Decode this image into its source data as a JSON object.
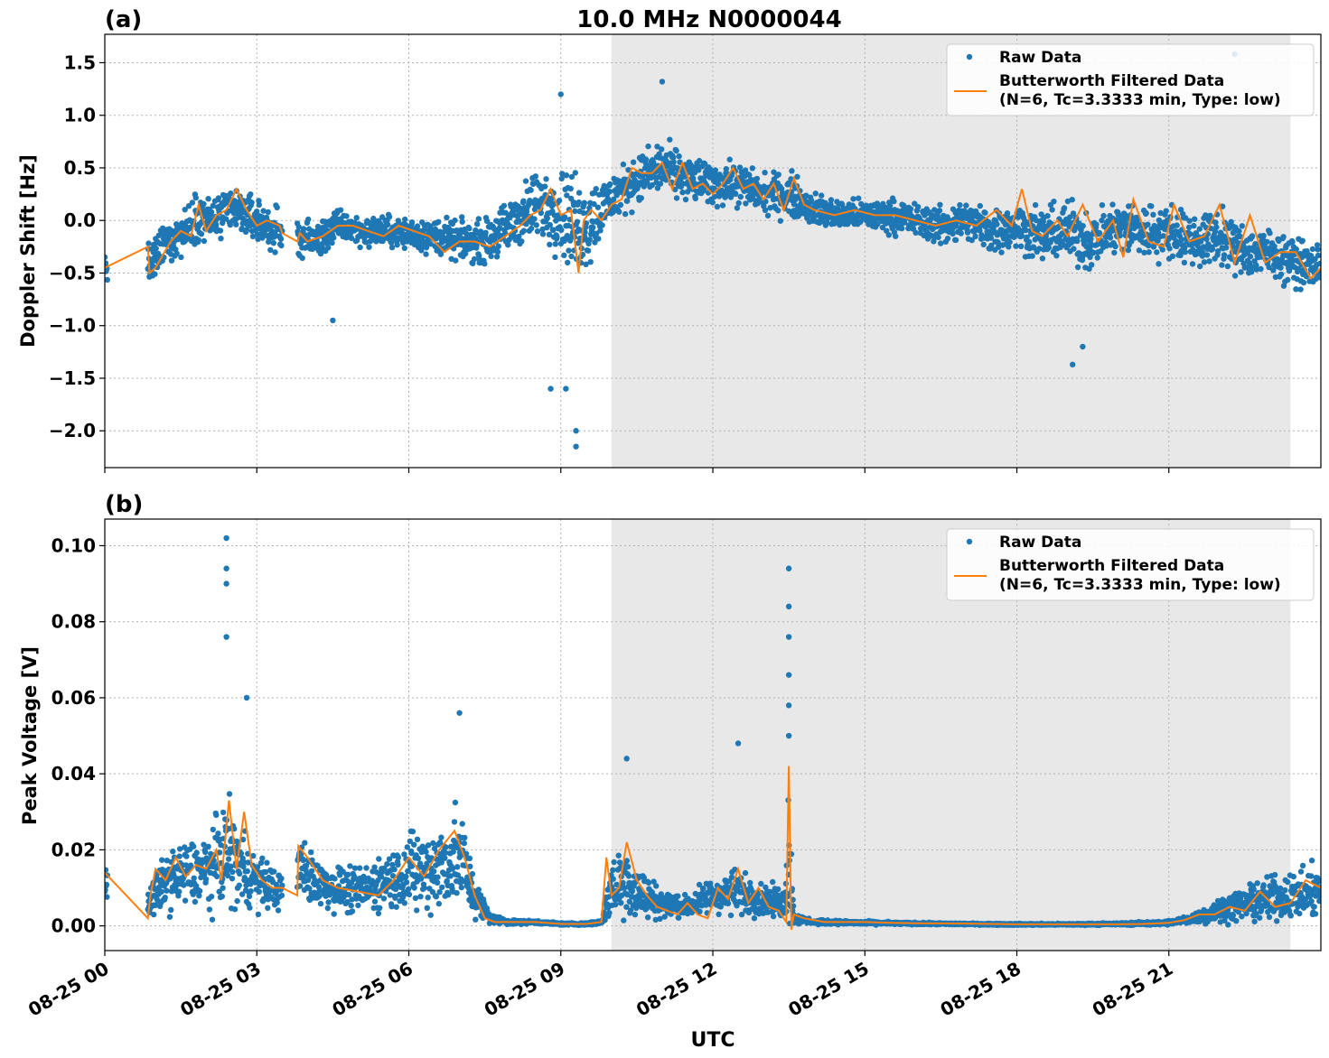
{
  "figure": {
    "title": "10.0 MHz N0000044",
    "xlabel": "UTC",
    "colors": {
      "raw": "#1f77b4",
      "filtered": "#ff7f0e",
      "shade": "#e8e8e8",
      "grid": "#b0b0b0"
    }
  },
  "chart_data": [
    {
      "type": "scatter",
      "panel_label": "(a)",
      "title": "10.0 MHz N0000044",
      "xlabel": "",
      "ylabel": "Doppler Shift [Hz]",
      "xlim_hours": [
        0,
        24
      ],
      "ylim": [
        -2.35,
        1.77
      ],
      "x_ticks": [
        "08-25 00",
        "08-25 03",
        "08-25 06",
        "08-25 09",
        "08-25 12",
        "08-25 15",
        "08-25 18",
        "08-25 21"
      ],
      "y_ticks": [
        1.5,
        1.0,
        0.5,
        0.0,
        -0.5,
        -1.0,
        -1.5,
        -2.0
      ],
      "y_tick_labels": [
        "1.5",
        "1.0",
        "0.5",
        "0.0",
        "−0.5",
        "−1.0",
        "−1.5",
        "−2.0"
      ],
      "grid": true,
      "legend_position": "top-right",
      "shaded_hours": [
        10.0,
        23.4
      ],
      "series": [
        {
          "name": "Raw Data",
          "style": "points",
          "x_hours": [
            0,
            0.05,
            0.9,
            1.2,
            1.6,
            1.8,
            2.1,
            2.5,
            2.8,
            3.2,
            3.5,
            3.8,
            4.2,
            4.6,
            5.0,
            5.5,
            6.0,
            6.5,
            7.0,
            7.5,
            8.0,
            8.5,
            9.0,
            9.3,
            9.6,
            10.0,
            10.5,
            11.0,
            11.5,
            12.0,
            12.5,
            13.0,
            13.5,
            14.0,
            14.5,
            15.0,
            15.5,
            16.0,
            16.5,
            17.0,
            17.5,
            18.0,
            18.5,
            19.0,
            19.5,
            20.0,
            20.5,
            21.0,
            21.5,
            22.0,
            22.5,
            23.0,
            23.5,
            24.0
          ],
          "y": [
            -0.45,
            -0.4,
            -0.45,
            -0.2,
            -0.1,
            0.05,
            0.0,
            0.1,
            0.05,
            -0.05,
            -0.15,
            -0.15,
            -0.2,
            -0.05,
            -0.1,
            -0.1,
            -0.12,
            -0.15,
            -0.2,
            -0.2,
            -0.05,
            0.15,
            0.1,
            -0.05,
            0.0,
            0.2,
            0.4,
            0.5,
            0.4,
            0.35,
            0.35,
            0.25,
            0.25,
            0.1,
            0.05,
            0.05,
            0.05,
            0.0,
            -0.05,
            0.0,
            -0.1,
            -0.05,
            -0.15,
            -0.1,
            -0.2,
            -0.05,
            -0.1,
            -0.1,
            -0.2,
            -0.15,
            -0.3,
            -0.3,
            -0.4,
            -0.45
          ],
          "spread": [
            0.3,
            0.3,
            0.3,
            0.3,
            0.3,
            0.32,
            0.32,
            0.32,
            0.3,
            0.3,
            0.3,
            0.25,
            0.25,
            0.22,
            0.2,
            0.2,
            0.2,
            0.25,
            0.25,
            0.28,
            0.35,
            0.45,
            0.55,
            0.7,
            0.55,
            0.35,
            0.3,
            0.35,
            0.3,
            0.28,
            0.28,
            0.25,
            0.3,
            0.22,
            0.2,
            0.2,
            0.22,
            0.22,
            0.25,
            0.28,
            0.3,
            0.3,
            0.35,
            0.4,
            0.38,
            0.35,
            0.38,
            0.35,
            0.35,
            0.35,
            0.35,
            0.32,
            0.3,
            0.3
          ]
        },
        {
          "name": "Butterworth Filtered Data\n(N=6, Tc=3.3333 min, Type: low)",
          "style": "line",
          "x_hours": [
            0,
            0.85,
            0.88,
            1.0,
            1.3,
            1.5,
            1.7,
            1.85,
            2.0,
            2.2,
            2.4,
            2.6,
            2.8,
            3.0,
            3.2,
            3.45,
            3.5,
            3.8,
            3.85,
            4.0,
            4.3,
            4.6,
            4.9,
            5.2,
            5.5,
            5.8,
            6.1,
            6.4,
            6.7,
            7.0,
            7.3,
            7.6,
            7.9,
            8.2,
            8.4,
            8.6,
            8.8,
            9.0,
            9.2,
            9.35,
            9.45,
            9.6,
            9.8,
            10.0,
            10.2,
            10.4,
            10.6,
            10.8,
            11.0,
            11.2,
            11.4,
            11.6,
            11.8,
            12.0,
            12.2,
            12.4,
            12.6,
            12.8,
            13.0,
            13.2,
            13.4,
            13.6,
            13.8,
            14.0,
            14.4,
            14.8,
            15.2,
            15.6,
            16.0,
            16.4,
            16.8,
            17.2,
            17.6,
            17.9,
            18.1,
            18.3,
            18.5,
            18.8,
            19.0,
            19.3,
            19.6,
            19.9,
            20.1,
            20.3,
            20.6,
            20.9,
            21.1,
            21.4,
            21.7,
            22.0,
            22.3,
            22.6,
            22.9,
            23.2,
            23.5,
            23.8,
            24.0
          ],
          "y": [
            -0.45,
            -0.25,
            -0.5,
            -0.45,
            -0.2,
            -0.1,
            -0.15,
            0.15,
            -0.1,
            0.05,
            0.1,
            0.3,
            0.1,
            -0.05,
            0.0,
            -0.05,
            -0.12,
            -0.2,
            -0.12,
            -0.2,
            -0.15,
            -0.05,
            -0.05,
            -0.1,
            -0.15,
            -0.05,
            -0.1,
            -0.15,
            -0.3,
            -0.2,
            -0.2,
            -0.25,
            -0.15,
            -0.05,
            0.05,
            0.1,
            0.3,
            0.05,
            0.1,
            -0.5,
            0.0,
            0.1,
            0.0,
            0.15,
            0.2,
            0.5,
            0.45,
            0.45,
            0.55,
            0.3,
            0.55,
            0.3,
            0.35,
            0.25,
            0.35,
            0.5,
            0.3,
            0.35,
            0.2,
            0.35,
            0.1,
            0.4,
            0.15,
            0.1,
            0.05,
            0.1,
            0.05,
            0.05,
            0.0,
            -0.05,
            0.0,
            -0.05,
            0.1,
            -0.05,
            0.3,
            -0.1,
            -0.15,
            0.0,
            -0.15,
            0.15,
            -0.2,
            0.0,
            -0.35,
            0.2,
            -0.2,
            -0.25,
            0.15,
            -0.2,
            -0.15,
            0.15,
            -0.4,
            0.05,
            -0.4,
            -0.3,
            -0.3,
            -0.55,
            -0.45
          ]
        }
      ]
    },
    {
      "type": "scatter",
      "panel_label": "(b)",
      "title": "",
      "xlabel": "UTC",
      "ylabel": "Peak Voltage [V]",
      "xlim_hours": [
        0,
        24
      ],
      "ylim": [
        -0.0065,
        0.107
      ],
      "x_ticks": [
        "08-25 00",
        "08-25 03",
        "08-25 06",
        "08-25 09",
        "08-25 12",
        "08-25 15",
        "08-25 18",
        "08-25 21"
      ],
      "y_ticks": [
        0.1,
        0.08,
        0.06,
        0.04,
        0.02,
        0.0
      ],
      "y_tick_labels": [
        "0.10",
        "0.08",
        "0.06",
        "0.04",
        "0.02",
        "0.00"
      ],
      "grid": true,
      "legend_position": "top-right",
      "shaded_hours": [
        10.0,
        23.4
      ],
      "series": [
        {
          "name": "Raw Data",
          "style": "points",
          "x_hours": [
            0,
            0.05,
            0.9,
            1.2,
            1.5,
            1.8,
            2.1,
            2.4,
            2.7,
            3.0,
            3.3,
            3.5,
            3.8,
            4.1,
            4.5,
            5.0,
            5.5,
            6.0,
            6.5,
            7.0,
            7.3,
            7.6,
            8.0,
            8.5,
            9.0,
            9.5,
            9.8,
            10.0,
            10.3,
            10.6,
            11.0,
            11.5,
            12.0,
            12.5,
            13.0,
            13.4,
            13.5,
            13.6,
            14.0,
            15.0,
            16.0,
            17.0,
            18.0,
            19.0,
            20.0,
            21.0,
            21.5,
            22.0,
            22.5,
            23.0,
            23.5,
            24.0
          ],
          "y": [
            0.012,
            0.012,
            0.006,
            0.012,
            0.013,
            0.014,
            0.015,
            0.02,
            0.015,
            0.012,
            0.01,
            0.009,
            0.016,
            0.012,
            0.01,
            0.009,
            0.012,
            0.014,
            0.015,
            0.018,
            0.008,
            0.002,
            0.001,
            0.001,
            0.0005,
            0.0005,
            0.001,
            0.01,
            0.012,
            0.008,
            0.006,
            0.005,
            0.008,
            0.009,
            0.007,
            0.006,
            0.02,
            0.002,
            0.001,
            0.0008,
            0.0006,
            0.0005,
            0.0004,
            0.0004,
            0.0005,
            0.0008,
            0.002,
            0.004,
            0.006,
            0.007,
            0.008,
            0.009
          ],
          "spread": [
            0.008,
            0.008,
            0.006,
            0.01,
            0.012,
            0.012,
            0.014,
            0.02,
            0.015,
            0.01,
            0.008,
            0.006,
            0.012,
            0.01,
            0.008,
            0.008,
            0.01,
            0.015,
            0.016,
            0.02,
            0.008,
            0.002,
            0.0008,
            0.0006,
            0.0004,
            0.0004,
            0.001,
            0.012,
            0.014,
            0.01,
            0.005,
            0.004,
            0.007,
            0.008,
            0.006,
            0.005,
            0.03,
            0.002,
            0.0008,
            0.0006,
            0.0004,
            0.0003,
            0.0003,
            0.0003,
            0.0004,
            0.0008,
            0.002,
            0.004,
            0.006,
            0.008,
            0.008,
            0.01
          ]
        },
        {
          "name": "Butterworth Filtered Data\n(N=6, Tc=3.3333 min, Type: low)",
          "style": "line",
          "x_hours": [
            0,
            0.85,
            0.9,
            1.0,
            1.2,
            1.4,
            1.6,
            1.8,
            2.0,
            2.2,
            2.3,
            2.45,
            2.6,
            2.75,
            2.9,
            3.1,
            3.3,
            3.5,
            3.8,
            3.82,
            4.0,
            4.3,
            4.6,
            5.0,
            5.4,
            5.7,
            6.0,
            6.3,
            6.6,
            6.9,
            7.1,
            7.3,
            7.5,
            7.7,
            8.0,
            8.5,
            9.0,
            9.5,
            9.8,
            9.9,
            10.0,
            10.15,
            10.3,
            10.5,
            10.7,
            10.9,
            11.1,
            11.3,
            11.5,
            11.7,
            11.9,
            12.1,
            12.3,
            12.5,
            12.7,
            12.9,
            13.1,
            13.3,
            13.45,
            13.5,
            13.55,
            13.6,
            13.8,
            14.2,
            14.6,
            15.0,
            15.5,
            16.0,
            17.0,
            18.0,
            19.0,
            20.0,
            20.5,
            21.0,
            21.3,
            21.6,
            21.9,
            22.2,
            22.5,
            22.8,
            23.1,
            23.4,
            23.7,
            24.0
          ],
          "y": [
            0.014,
            0.002,
            0.008,
            0.015,
            0.012,
            0.018,
            0.013,
            0.016,
            0.015,
            0.02,
            0.012,
            0.033,
            0.015,
            0.03,
            0.016,
            0.012,
            0.01,
            0.01,
            0.008,
            0.021,
            0.018,
            0.012,
            0.01,
            0.009,
            0.008,
            0.012,
            0.018,
            0.013,
            0.02,
            0.025,
            0.018,
            0.008,
            0.002,
            0.001,
            0.001,
            0.001,
            0.0005,
            0.0005,
            0.001,
            0.018,
            0.008,
            0.01,
            0.022,
            0.012,
            0.008,
            0.005,
            0.004,
            0.003,
            0.006,
            0.003,
            0.002,
            0.01,
            0.007,
            0.015,
            0.006,
            0.01,
            0.005,
            0.004,
            0.001,
            0.042,
            -0.001,
            0.003,
            0.002,
            0.001,
            0.001,
            0.001,
            0.0008,
            0.0007,
            0.0006,
            0.0004,
            0.0004,
            0.0004,
            0.0005,
            0.0008,
            0.0015,
            0.003,
            0.003,
            0.005,
            0.004,
            0.009,
            0.005,
            0.006,
            0.012,
            0.01
          ]
        }
      ]
    }
  ]
}
